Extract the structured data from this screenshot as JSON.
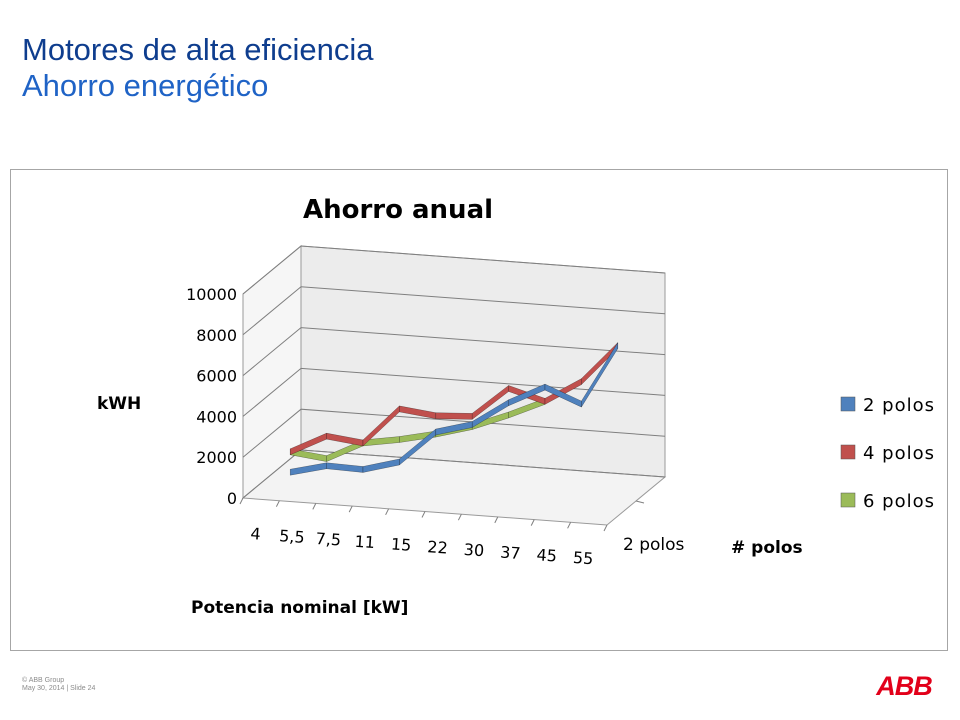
{
  "slide": {
    "title": "Motores de alta eficiencia",
    "subtitle": "Ahorro energético"
  },
  "footer": {
    "copyright": "© ABB Group",
    "date_slide": "May 30, 2014 | Slide 24"
  },
  "logo": {
    "text": "ABB",
    "color": "#e2001a"
  },
  "chart_data": {
    "type": "line",
    "variant": "3d-line",
    "title": "Ahorro anual",
    "xlabel": "Potencia nominal [kW]",
    "ylabel": "kWH",
    "zlabel": "# polos",
    "depth_categories": [
      "2 polos"
    ],
    "categories": [
      "4",
      "5,5",
      "7,5",
      "11",
      "15",
      "22",
      "30",
      "37",
      "45",
      "55"
    ],
    "ylim": [
      0,
      10000
    ],
    "yticks": [
      "0",
      "2000",
      "4000",
      "6000",
      "8000",
      "10000"
    ],
    "grid": true,
    "legend_position": "right",
    "series": [
      {
        "name": "2 polos",
        "color": "#4f81bd",
        "values": [
          300,
          750,
          700,
          1200,
          2800,
          3300,
          4500,
          5400,
          4700,
          7700
        ]
      },
      {
        "name": "4 polos",
        "color": "#c0504d",
        "values": [
          1300,
          2200,
          2000,
          3800,
          3600,
          3700,
          5200,
          4700,
          5800,
          7700
        ]
      },
      {
        "name": "6 polos",
        "color": "#9bbb59",
        "values": [
          1300,
          1100,
          2000,
          2300,
          2700,
          3200,
          3900,
          4700,
          null,
          null
        ]
      }
    ]
  }
}
